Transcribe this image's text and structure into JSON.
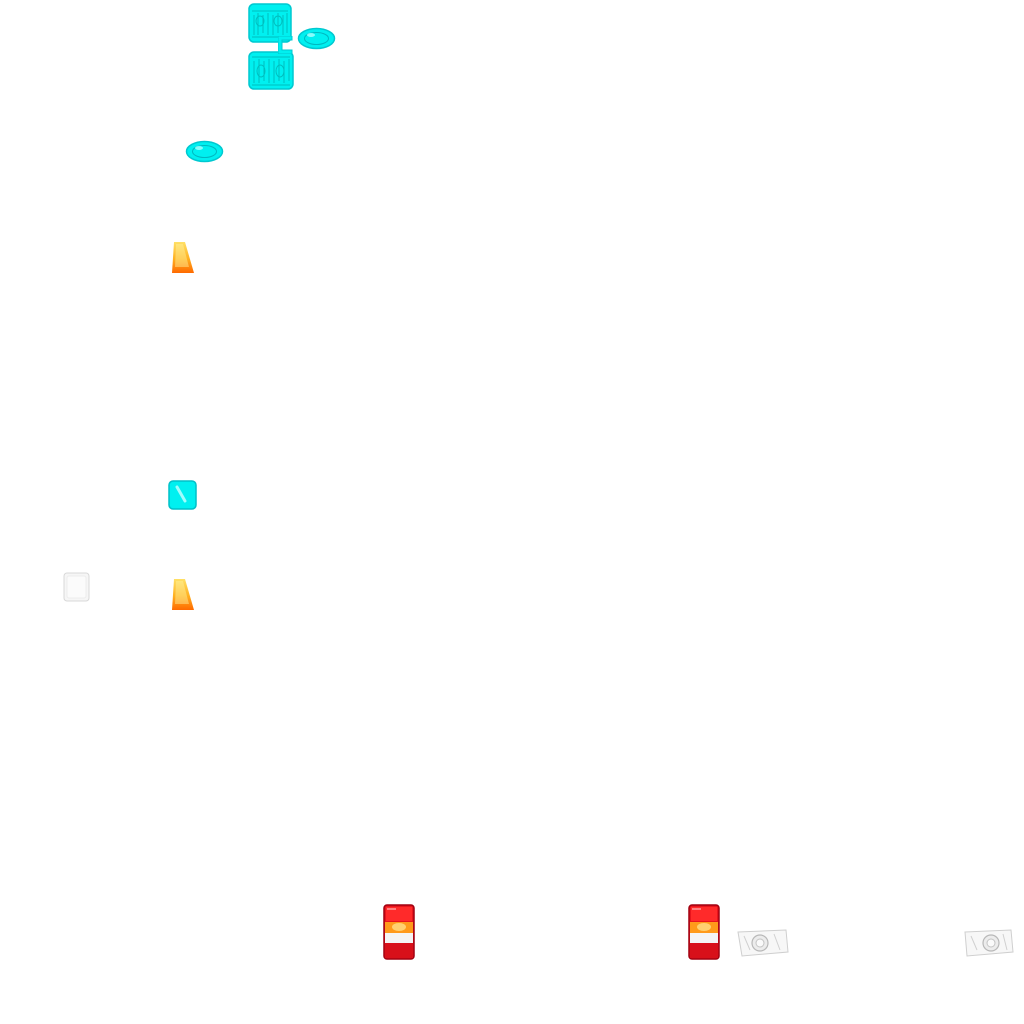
{
  "sheet": {
    "background": "#ffffff",
    "colors": {
      "cyan": "#00f0f0",
      "cyan_dark": "#00c8d0",
      "amber_top": "#ffe066",
      "amber_bottom": "#ff7a00",
      "red": "#e8141c",
      "red_dark": "#a00010",
      "orange_lens": "#ff9a1a",
      "clear_lens": "#f4f4f4",
      "chrome": "#c9c9c9"
    },
    "sprites": [
      {
        "name": "cyan-grille-panel-icon",
        "color": "cyan",
        "count": 2
      },
      {
        "name": "cyan-oval-lamp-icon",
        "color": "cyan",
        "count": 2
      },
      {
        "name": "amber-indicator-lens-icon",
        "color": "amber",
        "count": 2
      },
      {
        "name": "cyan-square-lamp-icon",
        "color": "cyan",
        "count": 1
      },
      {
        "name": "clear-square-lens-icon",
        "color": "clear",
        "count": 1
      },
      {
        "name": "red-tail-light-icon",
        "color": "red",
        "count": 2
      },
      {
        "name": "clear-headlight-icon",
        "color": "chrome",
        "count": 2
      }
    ]
  }
}
